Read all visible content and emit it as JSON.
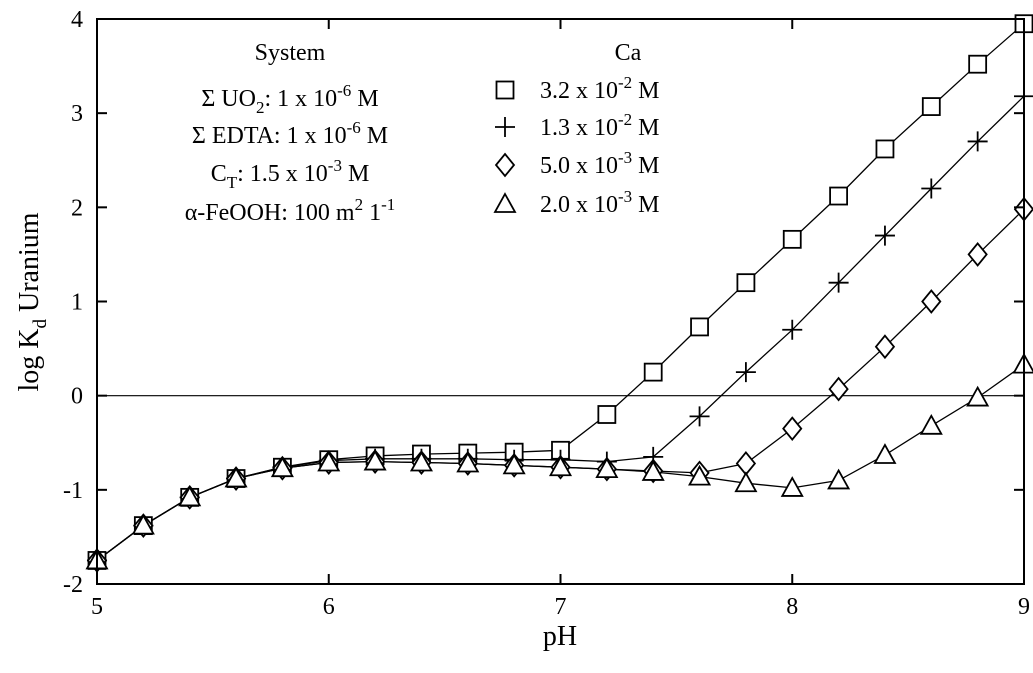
{
  "chart_data": {
    "type": "line",
    "xlabel": "pH",
    "ylabel_main": "log K",
    "ylabel_sub": "d",
    "ylabel_rest": " Uranium",
    "xlim": [
      5,
      9
    ],
    "ylim": [
      -2,
      4
    ],
    "xticks": [
      "5",
      "6",
      "7",
      "8",
      "9"
    ],
    "yticks": [
      "-2",
      "-1",
      "0",
      "1",
      "2",
      "3",
      "4"
    ],
    "zero_line": 0,
    "system_legend": {
      "heading": "System",
      "lines": [
        {
          "id": "uo2",
          "pre": "Σ UO",
          "sub": "2",
          "mid": ":  1 x 10",
          "sup": "-6",
          "post": " M"
        },
        {
          "id": "edta",
          "pre": "Σ EDTA:  1 x 10",
          "sup": "-6",
          "post": " M"
        },
        {
          "id": "ct",
          "pre": "C",
          "sub": "T",
          "mid": ":  1.5 x 10",
          "sup": "-3",
          "post": " M"
        },
        {
          "id": "feooh",
          "pre": "α-FeOOH:  100 m",
          "sup": "2",
          "mid": " 1",
          "sup2": "-1"
        }
      ]
    },
    "ca_legend_heading": "Ca",
    "series": [
      {
        "name": "3.2 x 10-2 M",
        "label_pre": "3.2 x 10",
        "label_sup": "-2",
        "label_post": " M",
        "marker": "square",
        "x": [
          5.0,
          5.2,
          5.4,
          5.6,
          5.8,
          6.0,
          6.2,
          6.4,
          6.6,
          6.8,
          7.0,
          7.2,
          7.4,
          7.6,
          7.8,
          8.0,
          8.2,
          8.4,
          8.6,
          8.8,
          9.0
        ],
        "y": [
          -1.75,
          -1.38,
          -1.08,
          -0.88,
          -0.76,
          -0.68,
          -0.64,
          -0.62,
          -0.61,
          -0.6,
          -0.58,
          -0.2,
          0.25,
          0.73,
          1.2,
          1.66,
          2.12,
          2.62,
          3.07,
          3.52,
          3.95
        ]
      },
      {
        "name": "1.3 x 10-2 M",
        "label_pre": "1.3 x 10",
        "label_sup": "-2",
        "label_post": " M",
        "marker": "plus",
        "x": [
          5.0,
          5.2,
          5.4,
          5.6,
          5.8,
          6.0,
          6.2,
          6.4,
          6.6,
          6.8,
          7.0,
          7.2,
          7.4,
          7.6,
          7.8,
          8.0,
          8.2,
          8.4,
          8.6,
          8.8,
          9.0
        ],
        "y": [
          -1.75,
          -1.38,
          -1.08,
          -0.88,
          -0.76,
          -0.69,
          -0.67,
          -0.67,
          -0.67,
          -0.68,
          -0.68,
          -0.7,
          -0.65,
          -0.22,
          0.25,
          0.7,
          1.2,
          1.7,
          2.2,
          2.7,
          3.18
        ]
      },
      {
        "name": "5.0 x 10-3 M",
        "label_pre": "5.0 x 10",
        "label_sup": "-3",
        "label_post": " M",
        "marker": "diamond",
        "x": [
          5.0,
          5.2,
          5.4,
          5.6,
          5.8,
          6.0,
          6.2,
          6.4,
          6.6,
          6.8,
          7.0,
          7.2,
          7.4,
          7.6,
          7.8,
          8.0,
          8.2,
          8.4,
          8.6,
          8.8,
          9.0
        ],
        "y": [
          -1.75,
          -1.38,
          -1.08,
          -0.88,
          -0.77,
          -0.71,
          -0.7,
          -0.71,
          -0.72,
          -0.74,
          -0.76,
          -0.78,
          -0.8,
          -0.82,
          -0.72,
          -0.35,
          0.07,
          0.52,
          1.0,
          1.5,
          1.98
        ]
      },
      {
        "name": "2.0 x 10-3 M",
        "label_pre": "2.0 x 10",
        "label_sup": "-3",
        "label_post": " M",
        "marker": "triangle",
        "x": [
          5.0,
          5.2,
          5.4,
          5.6,
          5.8,
          6.0,
          6.2,
          6.4,
          6.6,
          6.8,
          7.0,
          7.2,
          7.4,
          7.6,
          7.8,
          8.0,
          8.2,
          8.4,
          8.6,
          8.8,
          9.0
        ],
        "y": [
          -1.75,
          -1.38,
          -1.08,
          -0.88,
          -0.77,
          -0.71,
          -0.7,
          -0.71,
          -0.72,
          -0.74,
          -0.76,
          -0.78,
          -0.81,
          -0.86,
          -0.93,
          -0.98,
          -0.9,
          -0.63,
          -0.32,
          -0.02,
          0.33
        ]
      }
    ]
  }
}
